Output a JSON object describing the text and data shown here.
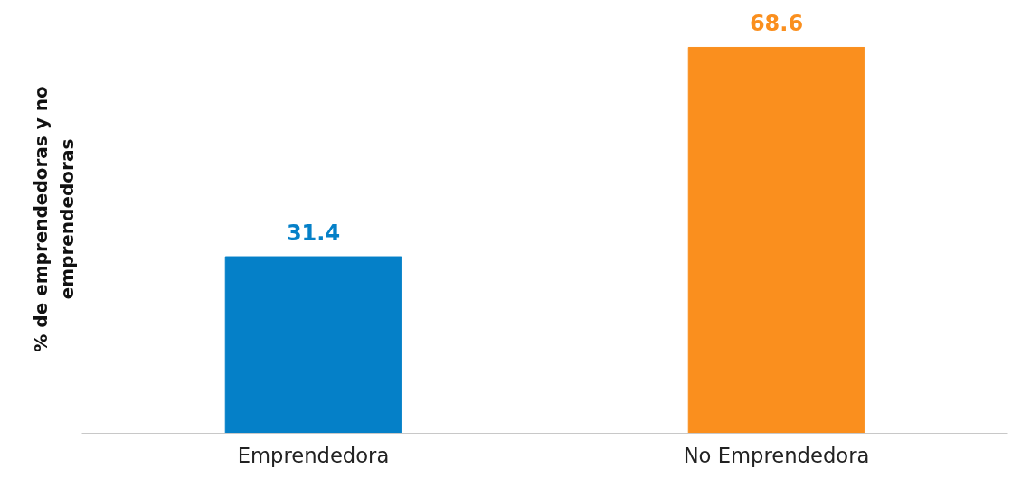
{
  "chart_data": {
    "type": "bar",
    "ylabel": "% de emprendedoras y no emprendedoras",
    "categories": [
      "Emprendedora",
      "No Emprendedora"
    ],
    "values": [
      31.4,
      68.6
    ],
    "colors": [
      "#0580c8",
      "#fa8f1e"
    ],
    "data_labels": true,
    "grid": false,
    "tick_labels": "x"
  }
}
